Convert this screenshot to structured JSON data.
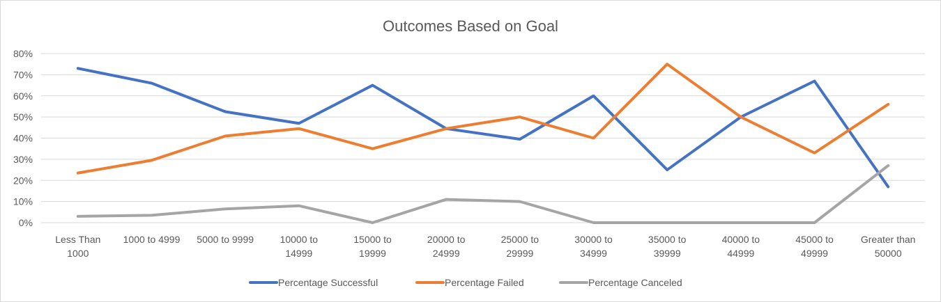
{
  "chart_data": {
    "type": "line",
    "title": "Outcomes Based on Goal",
    "xlabel": "",
    "ylabel": "",
    "categories": [
      [
        "Less Than",
        "1000"
      ],
      [
        "1000 to 4999"
      ],
      [
        "5000 to 9999"
      ],
      [
        "10000 to",
        "14999"
      ],
      [
        "15000 to",
        "19999"
      ],
      [
        "20000 to",
        "24999"
      ],
      [
        "25000 to",
        "29999"
      ],
      [
        "30000 to",
        "34999"
      ],
      [
        "35000 to",
        "39999"
      ],
      [
        "40000 to",
        "44999"
      ],
      [
        "45000 to",
        "49999"
      ],
      [
        "Greater than",
        "50000"
      ]
    ],
    "y_ticks": [
      "0%",
      "10%",
      "20%",
      "30%",
      "40%",
      "50%",
      "60%",
      "70%",
      "80%"
    ],
    "ylim": [
      0,
      80
    ],
    "grid": true,
    "legend_position": "bottom",
    "series": [
      {
        "name": "Percentage Successful",
        "color": "#4472C4",
        "values": [
          73,
          66,
          52.5,
          47,
          65,
          44.5,
          39.5,
          60,
          25,
          50,
          67,
          17
        ]
      },
      {
        "name": "Percentage Failed",
        "color": "#ED7D31",
        "values": [
          23.5,
          29.5,
          41,
          44.5,
          35,
          44.5,
          50,
          40,
          75,
          50,
          33,
          56
        ]
      },
      {
        "name": "Percentage Canceled",
        "color": "#A5A5A5",
        "values": [
          3,
          3.5,
          6.5,
          8,
          0,
          11,
          10,
          0,
          0,
          0,
          0,
          27
        ]
      }
    ]
  }
}
